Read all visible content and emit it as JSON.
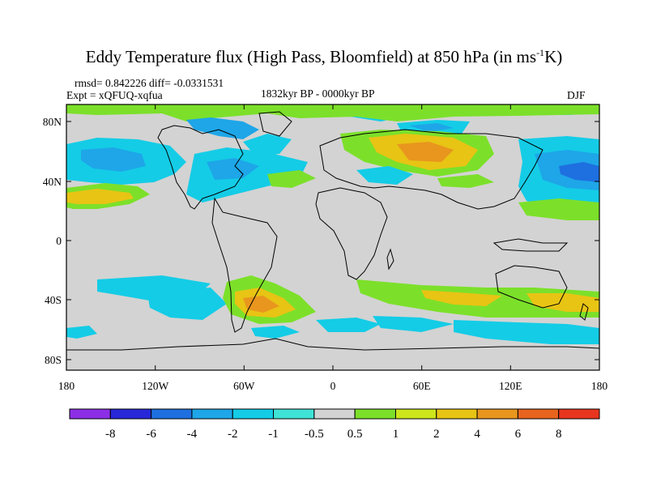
{
  "header": {
    "title_before": "Eddy Temperature flux (High Pass, Bloomfield) at 850 hPa (in ms",
    "title_sup": "-1",
    "title_after": "K)",
    "stats": "rmsd= 0.842226 diff= -0.0331531",
    "experiment": "Expt = xQFUQ-xqfua",
    "period": "1832kyr BP - 0000kyr BP",
    "season": "DJF"
  },
  "map": {
    "lat_ticks": [
      "80N",
      "40N",
      "0",
      "40S",
      "80S"
    ],
    "lon_ticks": [
      "180",
      "120W",
      "60W",
      "0",
      "60E",
      "120E",
      "180"
    ],
    "background_color": "#d3d3d3"
  },
  "legend": {
    "labels": [
      "-8",
      "-6",
      "-4",
      "-2",
      "-1",
      "-0.5",
      "0.5",
      "1",
      "2",
      "4",
      "6",
      "8"
    ],
    "colors": [
      "#8c2ee6",
      "#2828d9",
      "#1e6fe0",
      "#1ea6e8",
      "#14cce6",
      "#3fe3d6",
      "#d3d3d3",
      "#7ce02a",
      "#cde61c",
      "#e8c414",
      "#e8961e",
      "#e8641e",
      "#e8361e"
    ]
  }
}
